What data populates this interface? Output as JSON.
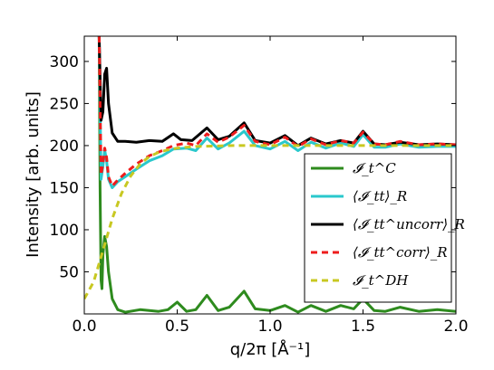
{
  "chart_data": {
    "type": "line",
    "title": "",
    "xlabel": "q/2π [Å⁻¹]",
    "ylabel": "Intensity [arb. units]",
    "xlim": [
      0.0,
      2.0
    ],
    "ylim": [
      0,
      330
    ],
    "x_ticks": [
      "0.0",
      "0.5",
      "1.0",
      "1.5",
      "2.0"
    ],
    "y_ticks": [
      "50",
      "100",
      "150",
      "200",
      "250",
      "300"
    ],
    "x_tick_values": [
      0.0,
      0.5,
      1.0,
      1.5,
      2.0
    ],
    "y_tick_values": [
      50,
      100,
      150,
      200,
      250,
      300
    ],
    "grid": false,
    "legend_position": "right",
    "series": [
      {
        "name": "𝓘_t^C",
        "style": "solid",
        "color": "#2e8b1e",
        "x": [
          0.08,
          0.085,
          0.09,
          0.095,
          0.1,
          0.11,
          0.12,
          0.13,
          0.15,
          0.18,
          0.22,
          0.3,
          0.4,
          0.45,
          0.5,
          0.55,
          0.6,
          0.66,
          0.72,
          0.78,
          0.86,
          0.92,
          1.0,
          1.08,
          1.15,
          1.22,
          1.3,
          1.38,
          1.45,
          1.5,
          1.56,
          1.62,
          1.7,
          1.8,
          1.9,
          2.0
        ],
        "y": [
          330,
          150,
          40,
          30,
          70,
          92,
          80,
          50,
          18,
          5,
          2,
          5,
          3,
          5,
          14,
          3,
          5,
          22,
          4,
          8,
          27,
          6,
          4,
          10,
          2,
          10,
          3,
          10,
          6,
          18,
          4,
          3,
          8,
          3,
          5,
          3
        ]
      },
      {
        "name": "⟨𝓘_tt⟩_R",
        "style": "solid",
        "color": "#2ac8cc",
        "x": [
          0.08,
          0.085,
          0.09,
          0.1,
          0.11,
          0.12,
          0.13,
          0.15,
          0.18,
          0.22,
          0.28,
          0.35,
          0.42,
          0.48,
          0.55,
          0.6,
          0.66,
          0.72,
          0.78,
          0.86,
          0.92,
          1.0,
          1.08,
          1.15,
          1.22,
          1.3,
          1.38,
          1.45,
          1.5,
          1.56,
          1.62,
          1.7,
          1.8,
          1.9,
          2.0
        ],
        "y": [
          330,
          250,
          160,
          175,
          195,
          182,
          160,
          150,
          157,
          163,
          172,
          182,
          188,
          196,
          197,
          194,
          209,
          196,
          203,
          217,
          200,
          196,
          205,
          194,
          204,
          197,
          203,
          199,
          213,
          198,
          198,
          202,
          198,
          199,
          199
        ]
      },
      {
        "name": "⟨𝓘_tt^uncorr⟩_R",
        "style": "solid",
        "color": "#000000",
        "x": [
          0.08,
          0.09,
          0.1,
          0.11,
          0.12,
          0.13,
          0.15,
          0.18,
          0.22,
          0.28,
          0.35,
          0.42,
          0.48,
          0.52,
          0.58,
          0.66,
          0.72,
          0.78,
          0.86,
          0.92,
          1.0,
          1.08,
          1.15,
          1.22,
          1.3,
          1.38,
          1.45,
          1.5,
          1.56,
          1.62,
          1.7,
          1.8,
          1.9,
          2.0
        ],
        "y": [
          330,
          230,
          240,
          285,
          292,
          250,
          215,
          205,
          205,
          204,
          206,
          205,
          214,
          207,
          206,
          221,
          207,
          211,
          227,
          206,
          203,
          212,
          200,
          209,
          202,
          206,
          203,
          217,
          202,
          201,
          204,
          201,
          202,
          201
        ]
      },
      {
        "name": "⟨𝓘_tt^corr⟩_R",
        "style": "dashed",
        "color": "#ee1c1c",
        "x": [
          0.08,
          0.085,
          0.09,
          0.1,
          0.11,
          0.12,
          0.13,
          0.15,
          0.18,
          0.22,
          0.28,
          0.35,
          0.42,
          0.48,
          0.55,
          0.6,
          0.66,
          0.72,
          0.78,
          0.86,
          0.92,
          1.0,
          1.08,
          1.15,
          1.22,
          1.3,
          1.38,
          1.45,
          1.5,
          1.56,
          1.62,
          1.7,
          1.8,
          1.9,
          2.0
        ],
        "y": [
          330,
          250,
          165,
          178,
          197,
          186,
          163,
          152,
          159,
          167,
          178,
          188,
          194,
          200,
          203,
          200,
          214,
          204,
          210,
          224,
          205,
          201,
          210,
          199,
          208,
          201,
          206,
          203,
          216,
          202,
          201,
          205,
          201,
          202,
          201
        ]
      },
      {
        "name": "𝓘_t^DH",
        "style": "dashed",
        "color": "#c8c822",
        "x": [
          0.0,
          0.05,
          0.1,
          0.15,
          0.2,
          0.25,
          0.3,
          0.35,
          0.4,
          0.45,
          0.5,
          0.55,
          0.6,
          0.7,
          0.8,
          1.0,
          1.2,
          1.5,
          2.0
        ],
        "y": [
          18,
          38,
          75,
          113,
          143,
          164,
          178,
          187,
          192,
          195,
          197,
          198,
          199,
          199.5,
          200,
          200,
          200,
          200,
          200
        ]
      }
    ]
  }
}
